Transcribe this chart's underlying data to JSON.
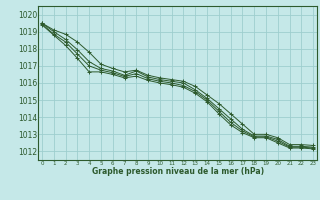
{
  "xlabel": "Graphe pression niveau de la mer (hPa)",
  "background_color": "#c5e8e8",
  "grid_color": "#9ecece",
  "line_color": "#2d5a2d",
  "ylim": [
    1011.5,
    1020.5
  ],
  "yticks": [
    1012,
    1013,
    1014,
    1015,
    1016,
    1017,
    1018,
    1019,
    1020
  ],
  "xlim": [
    -0.3,
    23.3
  ],
  "xticks": [
    0,
    1,
    2,
    3,
    4,
    5,
    6,
    7,
    8,
    9,
    10,
    11,
    12,
    13,
    14,
    15,
    16,
    17,
    18,
    19,
    20,
    21,
    22,
    23
  ],
  "series": [
    [
      1019.5,
      1019.1,
      1018.85,
      1018.4,
      1017.8,
      1017.1,
      1016.85,
      1016.65,
      1016.75,
      1016.45,
      1016.3,
      1016.2,
      1016.1,
      1015.8,
      1015.3,
      1014.8,
      1014.2,
      1013.6,
      1013.0,
      1013.0,
      1012.8,
      1012.4,
      1012.4,
      1012.35
    ],
    [
      1019.5,
      1019.0,
      1018.55,
      1017.95,
      1017.25,
      1016.85,
      1016.7,
      1016.45,
      1016.7,
      1016.35,
      1016.2,
      1016.1,
      1016.0,
      1015.6,
      1015.1,
      1014.5,
      1013.9,
      1013.3,
      1012.9,
      1012.9,
      1012.7,
      1012.3,
      1012.3,
      1012.25
    ],
    [
      1019.45,
      1018.85,
      1018.4,
      1017.7,
      1017.0,
      1016.75,
      1016.6,
      1016.38,
      1016.55,
      1016.25,
      1016.1,
      1016.0,
      1015.85,
      1015.5,
      1015.0,
      1014.35,
      1013.7,
      1013.2,
      1012.85,
      1012.85,
      1012.6,
      1012.25,
      1012.25,
      1012.2
    ],
    [
      1019.4,
      1018.8,
      1018.2,
      1017.45,
      1016.65,
      1016.65,
      1016.5,
      1016.3,
      1016.4,
      1016.15,
      1016.0,
      1015.9,
      1015.75,
      1015.4,
      1014.9,
      1014.2,
      1013.55,
      1013.1,
      1012.8,
      1012.8,
      1012.5,
      1012.2,
      1012.2,
      1012.15
    ]
  ]
}
